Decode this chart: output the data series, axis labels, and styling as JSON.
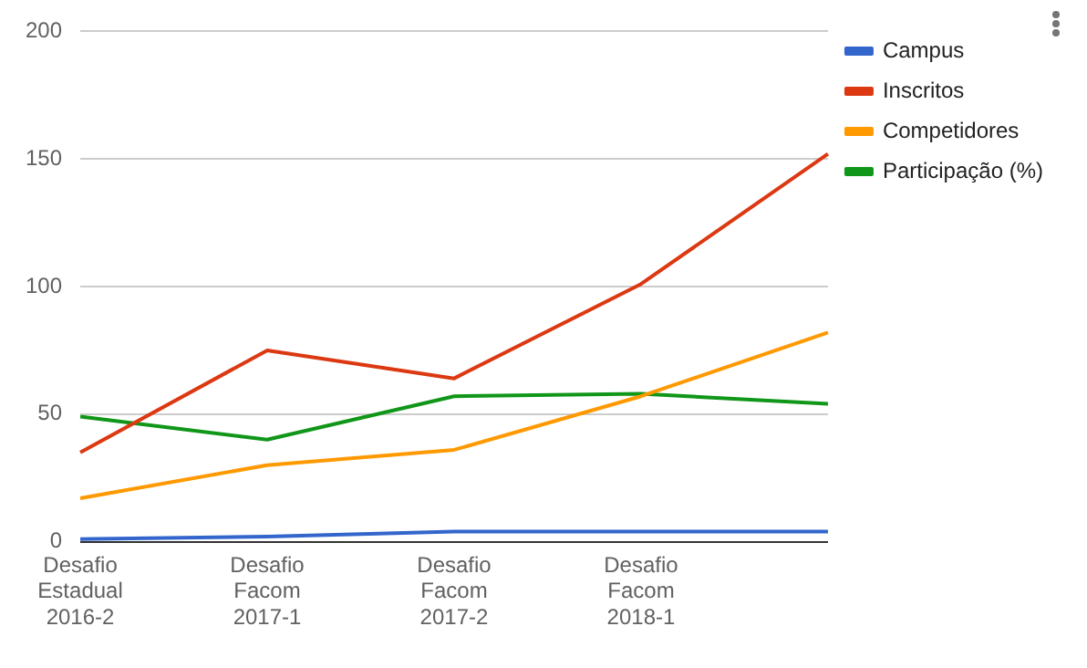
{
  "chart_data": {
    "type": "line",
    "categories": [
      "Desafio Estadual 2016-2",
      "Desafio Facom 2017-1",
      "Desafio Facom 2017-2",
      "Desafio Facom 2018-1",
      null
    ],
    "series": [
      {
        "name": "Campus",
        "color": "#3366cc",
        "values": [
          1,
          2,
          4,
          4,
          4
        ]
      },
      {
        "name": "Inscritos",
        "color": "#dc3912",
        "values": [
          35,
          75,
          64,
          101,
          152
        ]
      },
      {
        "name": "Competidores",
        "color": "#ff9900",
        "values": [
          17,
          30,
          36,
          57,
          82
        ]
      },
      {
        "name": "Participação (%)",
        "color": "#109618",
        "values": [
          49,
          40,
          57,
          58,
          54
        ]
      }
    ],
    "ylim": [
      0,
      200
    ],
    "yticks": [
      0,
      50,
      100,
      150,
      200
    ],
    "grid": "y",
    "legend": "top right",
    "marker": "none",
    "line_style": "solid"
  }
}
